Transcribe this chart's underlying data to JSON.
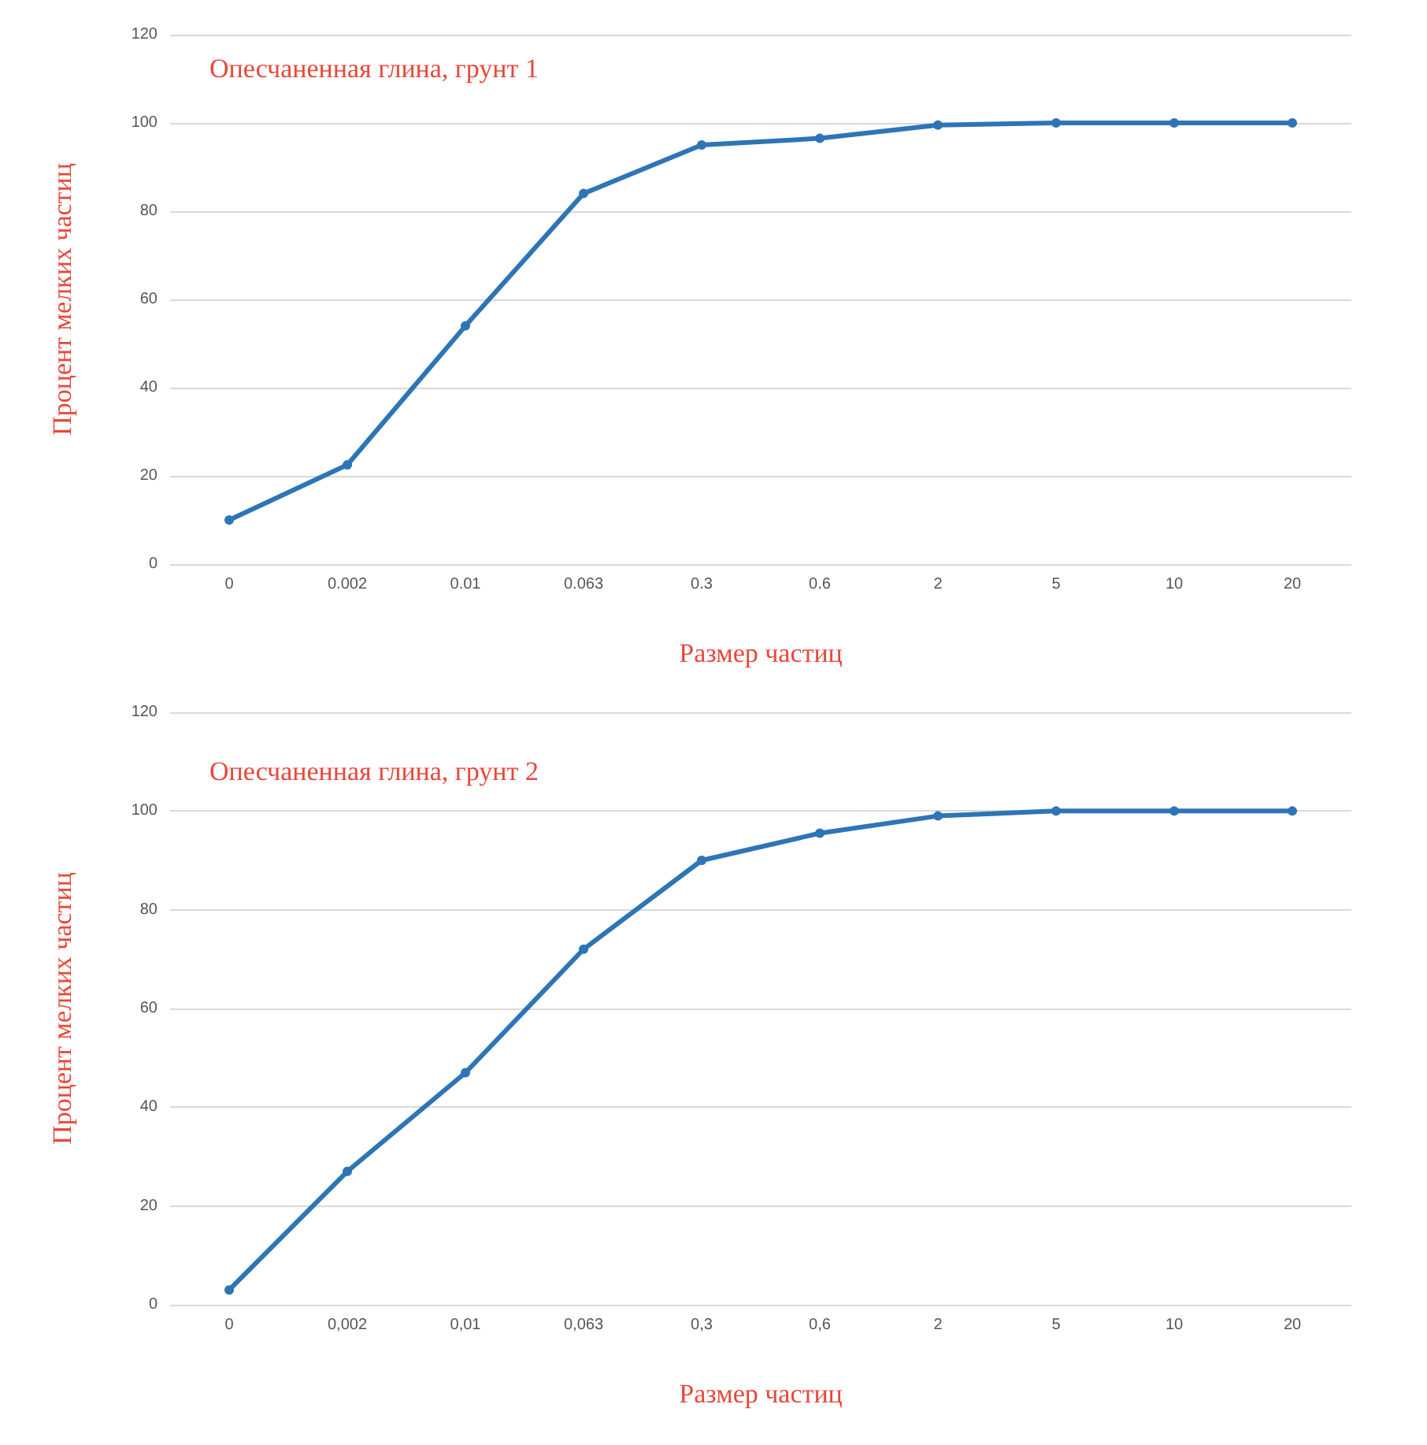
{
  "chart_data": [
    {
      "type": "line",
      "title": "Опесчаненная глина, грунт 1",
      "xlabel": "Размер частиц",
      "ylabel": "Процент мелких частиц",
      "categories": [
        "0",
        "0.002",
        "0.01",
        "0.063",
        "0.3",
        "0.6",
        "2",
        "5",
        "10",
        "20"
      ],
      "series": [
        {
          "color": "#2e75b6",
          "values": [
            10,
            22.5,
            54,
            84,
            95,
            96.5,
            99.5,
            100,
            100,
            100
          ]
        }
      ],
      "ylim": [
        0,
        120
      ],
      "yticks": [
        0,
        20,
        40,
        60,
        80,
        100,
        120
      ],
      "grid": "y",
      "marker": "circle",
      "line_style": "solid"
    },
    {
      "type": "line",
      "title": "Опесчаненная глина, грунт 2",
      "xlabel": "Размер частиц",
      "ylabel": "Процент мелких частиц",
      "categories": [
        "0",
        "0,002",
        "0,01",
        "0,063",
        "0,3",
        "0,6",
        "2",
        "5",
        "10",
        "20"
      ],
      "series": [
        {
          "color": "#2e75b6",
          "values": [
            3,
            27,
            47,
            72,
            90,
            95.5,
            99,
            100,
            100,
            100
          ]
        }
      ],
      "ylim": [
        0,
        120
      ],
      "yticks": [
        0,
        20,
        40,
        60,
        80,
        100,
        120
      ],
      "grid": "y",
      "marker": "circle",
      "line_style": "solid"
    }
  ]
}
